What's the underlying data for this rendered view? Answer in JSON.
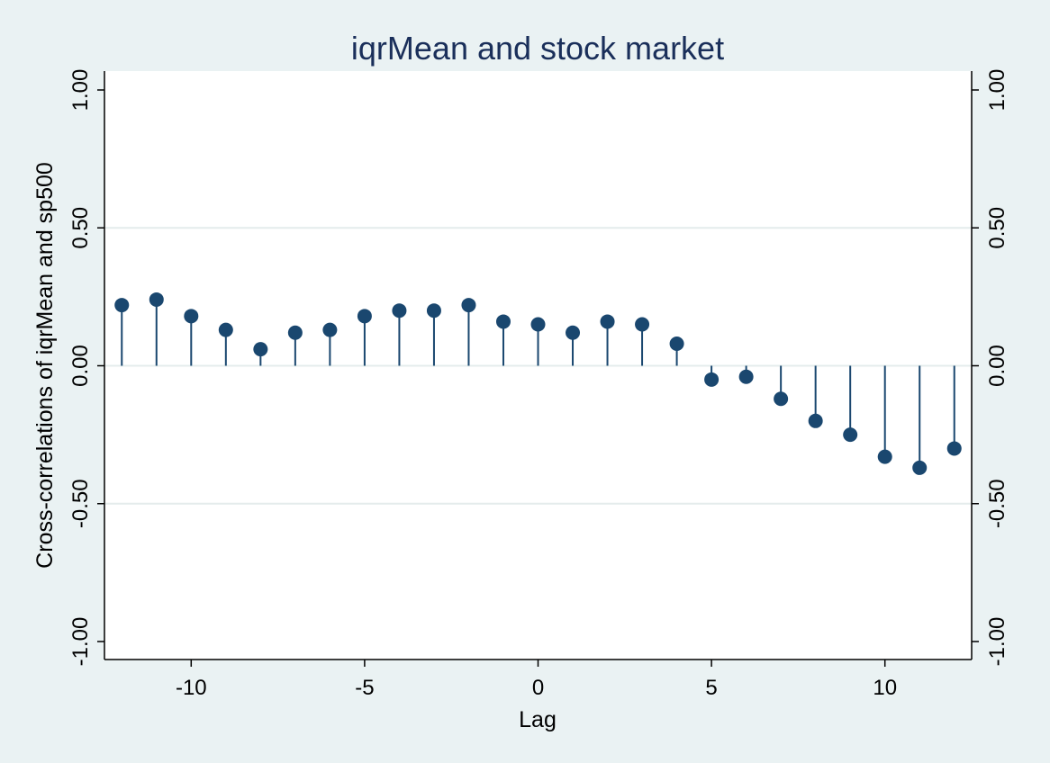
{
  "chart_data": {
    "type": "scatter",
    "style": "stem",
    "title": "iqrMean and stock market",
    "xlabel": "Lag",
    "ylabel": "Cross-correlations of iqrMean and sp500",
    "xlim": [
      -12.5,
      12.5
    ],
    "ylim": [
      -1.0,
      1.0
    ],
    "xticks": [
      -10,
      -5,
      0,
      5,
      10
    ],
    "xtick_labels": [
      "-10",
      "-5",
      "0",
      "5",
      "10"
    ],
    "yticks": [
      -1.0,
      -0.5,
      0.0,
      0.5,
      1.0
    ],
    "ytick_labels": [
      "-1.00",
      "-0.50",
      "0.00",
      "0.50",
      "1.00"
    ],
    "grid": true,
    "secondary_y_axis": true,
    "x": [
      -12,
      -11,
      -10,
      -9,
      -8,
      -7,
      -6,
      -5,
      -4,
      -3,
      -2,
      -1,
      0,
      1,
      2,
      3,
      4,
      5,
      6,
      7,
      8,
      9,
      10,
      11,
      12
    ],
    "values": [
      0.22,
      0.24,
      0.18,
      0.13,
      0.06,
      0.12,
      0.13,
      0.18,
      0.2,
      0.2,
      0.22,
      0.16,
      0.15,
      0.12,
      0.16,
      0.15,
      0.08,
      -0.05,
      -0.04,
      -0.12,
      -0.2,
      -0.25,
      -0.33,
      -0.37,
      -0.3
    ],
    "colors": {
      "background": "#eaf2f3",
      "plot_area": "#ffffff",
      "marker": "#1a476f",
      "grid": "#e4ecec",
      "title": "#1a2f5a"
    }
  }
}
